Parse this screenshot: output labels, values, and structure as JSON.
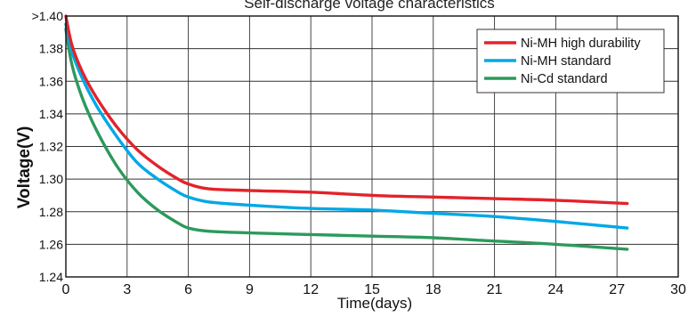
{
  "chart_data": {
    "type": "line",
    "title": "Self-discharge voltage characteristics",
    "xlabel": "Time(days)",
    "ylabel": "Voltage(V)",
    "xlim": [
      0,
      30
    ],
    "ylim": [
      1.24,
      1.4
    ],
    "x_ticks": [
      "0",
      "3",
      "6",
      "9",
      "12",
      "15",
      "18",
      "21",
      "24",
      "27",
      "30"
    ],
    "y_ticks": [
      "1.24",
      "1.26",
      "1.28",
      "1.30",
      "1.32",
      "1.34",
      "1.36",
      "1.38",
      ">1.40"
    ],
    "grid": true,
    "legend_position": "top-right",
    "series": [
      {
        "name": "Ni-MH high durability",
        "color": "#e2232a",
        "points": [
          [
            0,
            1.4
          ],
          [
            0.3,
            1.382
          ],
          [
            0.8,
            1.366
          ],
          [
            1.5,
            1.35
          ],
          [
            2.5,
            1.332
          ],
          [
            3.5,
            1.318
          ],
          [
            4.5,
            1.308
          ],
          [
            5.5,
            1.3
          ],
          [
            6,
            1.297
          ],
          [
            7,
            1.294
          ],
          [
            9,
            1.293
          ],
          [
            12,
            1.292
          ],
          [
            15,
            1.29
          ],
          [
            18,
            1.289
          ],
          [
            21,
            1.288
          ],
          [
            24,
            1.287
          ],
          [
            27.5,
            1.285
          ]
        ]
      },
      {
        "name": "Ni-MH standard",
        "color": "#00a8e6",
        "points": [
          [
            0,
            1.395
          ],
          [
            0.3,
            1.378
          ],
          [
            0.8,
            1.362
          ],
          [
            1.5,
            1.345
          ],
          [
            2.5,
            1.326
          ],
          [
            3.5,
            1.31
          ],
          [
            4.5,
            1.3
          ],
          [
            5.5,
            1.292
          ],
          [
            6,
            1.289
          ],
          [
            7,
            1.286
          ],
          [
            9,
            1.284
          ],
          [
            12,
            1.282
          ],
          [
            15,
            1.281
          ],
          [
            18,
            1.279
          ],
          [
            21,
            1.277
          ],
          [
            24,
            1.274
          ],
          [
            27.5,
            1.27
          ]
        ]
      },
      {
        "name": "Ni-Cd  standard",
        "color": "#2c9a5c",
        "points": [
          [
            0,
            1.392
          ],
          [
            0.3,
            1.37
          ],
          [
            0.8,
            1.35
          ],
          [
            1.5,
            1.33
          ],
          [
            2.5,
            1.308
          ],
          [
            3.5,
            1.292
          ],
          [
            4.5,
            1.281
          ],
          [
            5.5,
            1.273
          ],
          [
            6,
            1.27
          ],
          [
            7,
            1.268
          ],
          [
            9,
            1.267
          ],
          [
            12,
            1.266
          ],
          [
            15,
            1.265
          ],
          [
            18,
            1.264
          ],
          [
            21,
            1.262
          ],
          [
            24,
            1.26
          ],
          [
            27.5,
            1.257
          ]
        ]
      }
    ]
  }
}
